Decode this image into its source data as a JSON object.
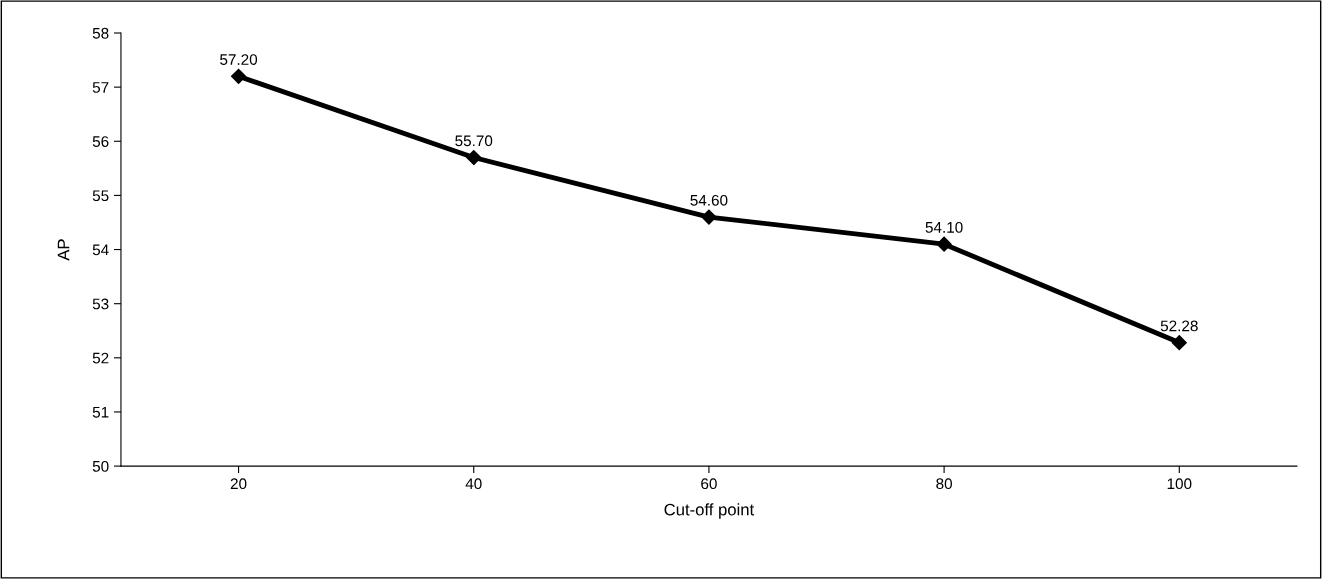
{
  "chart_data": {
    "type": "line",
    "xlabel": "Cut-off point",
    "ylabel": "AP",
    "categories": [
      "20",
      "40",
      "60",
      "80",
      "100"
    ],
    "series": [
      {
        "color": "#000000",
        "values": [
          57.2,
          55.7,
          54.6,
          54.1,
          52.28
        ],
        "value_labels": [
          "57.20",
          "55.70",
          "54.60",
          "54.10",
          "52.28"
        ]
      }
    ],
    "ylim": [
      50,
      58
    ],
    "yticks": [
      50,
      51,
      52,
      53,
      54,
      55,
      56,
      57,
      58
    ],
    "grid": false,
    "legend": false,
    "marker": "diamond",
    "line_style": "solid"
  }
}
